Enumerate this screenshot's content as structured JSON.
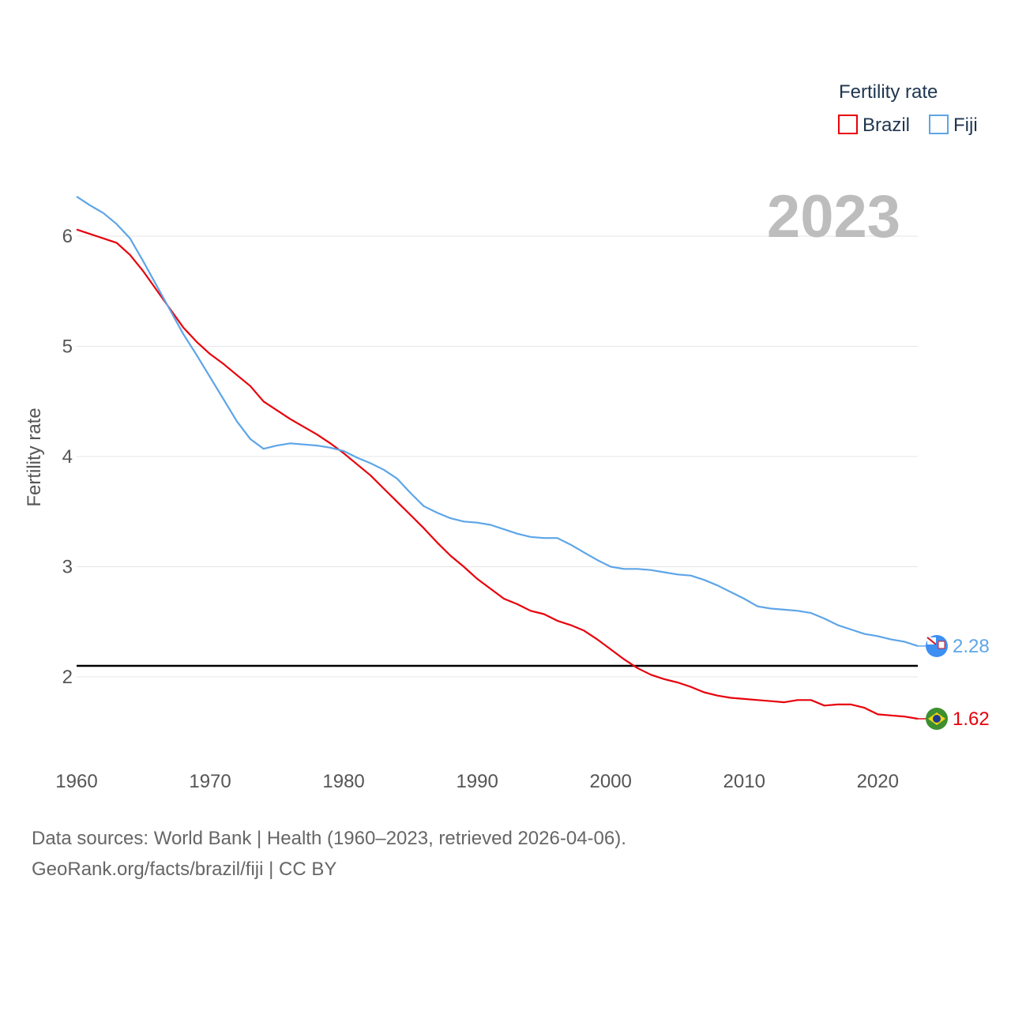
{
  "chart_data": {
    "type": "line",
    "legend_title": "Fertility rate",
    "year_label": "2023",
    "ylabel": "Fertility rate",
    "xlabel": "",
    "xlim": [
      1960,
      2023
    ],
    "ylim": [
      1.4,
      6.5
    ],
    "x_ticks": [
      1960,
      1970,
      1980,
      1990,
      2000,
      2010,
      2020
    ],
    "y_ticks": [
      2,
      3,
      4,
      5,
      6
    ],
    "reference_line": 2.1,
    "legend_position": "top-right",
    "x": [
      1960,
      1961,
      1962,
      1963,
      1964,
      1965,
      1966,
      1967,
      1968,
      1969,
      1970,
      1971,
      1972,
      1973,
      1974,
      1975,
      1976,
      1977,
      1978,
      1979,
      1980,
      1981,
      1982,
      1983,
      1984,
      1985,
      1986,
      1987,
      1988,
      1989,
      1990,
      1991,
      1992,
      1993,
      1994,
      1995,
      1996,
      1997,
      1998,
      1999,
      2000,
      2001,
      2002,
      2003,
      2004,
      2005,
      2006,
      2007,
      2008,
      2009,
      2010,
      2011,
      2012,
      2013,
      2014,
      2015,
      2016,
      2017,
      2018,
      2019,
      2020,
      2021,
      2022,
      2023
    ],
    "series": [
      {
        "name": "Brazil",
        "color": "#e8000b",
        "end_value_label": "1.62",
        "values": [
          6.06,
          6.02,
          5.98,
          5.94,
          5.83,
          5.68,
          5.51,
          5.34,
          5.17,
          5.04,
          4.93,
          4.84,
          4.74,
          4.64,
          4.5,
          4.42,
          4.34,
          4.27,
          4.2,
          4.12,
          4.03,
          3.93,
          3.83,
          3.71,
          3.59,
          3.47,
          3.35,
          3.22,
          3.1,
          3.0,
          2.89,
          2.8,
          2.71,
          2.66,
          2.6,
          2.57,
          2.51,
          2.47,
          2.42,
          2.34,
          2.25,
          2.16,
          2.08,
          2.02,
          1.98,
          1.95,
          1.91,
          1.86,
          1.83,
          1.81,
          1.8,
          1.79,
          1.78,
          1.77,
          1.79,
          1.79,
          1.74,
          1.75,
          1.75,
          1.72,
          1.66,
          1.65,
          1.64,
          1.62
        ]
      },
      {
        "name": "Fiji",
        "color": "#5da5e8",
        "end_value_label": "2.28",
        "values": [
          6.36,
          6.28,
          6.21,
          6.11,
          5.98,
          5.77,
          5.55,
          5.33,
          5.11,
          4.92,
          4.72,
          4.52,
          4.32,
          4.16,
          4.07,
          4.1,
          4.12,
          4.11,
          4.1,
          4.08,
          4.05,
          3.99,
          3.94,
          3.88,
          3.8,
          3.67,
          3.55,
          3.49,
          3.44,
          3.41,
          3.4,
          3.38,
          3.34,
          3.3,
          3.27,
          3.26,
          3.26,
          3.2,
          3.13,
          3.06,
          3.0,
          2.98,
          2.98,
          2.97,
          2.95,
          2.93,
          2.92,
          2.88,
          2.83,
          2.77,
          2.71,
          2.64,
          2.62,
          2.61,
          2.6,
          2.58,
          2.53,
          2.47,
          2.43,
          2.39,
          2.37,
          2.34,
          2.32,
          2.28
        ]
      }
    ]
  },
  "footer": {
    "sources": "Data sources: World Bank | Health (1960–2023, retrieved 2026-04-06).",
    "credit": "GeoRank.org/facts/brazil/fiji | CC BY"
  }
}
